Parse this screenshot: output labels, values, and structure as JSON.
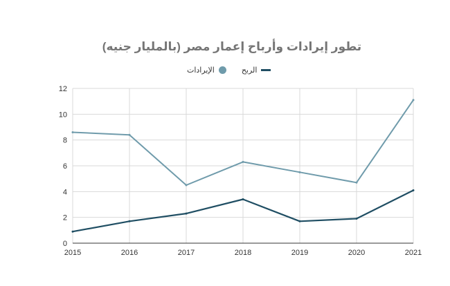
{
  "chart_data": {
    "type": "line",
    "title": "تطور إيرادات وأرباح إعمار مصر (بالمليار جنيه)",
    "xlabel": "",
    "ylabel": "",
    "x": [
      "2015",
      "2016",
      "2017",
      "2018",
      "2019",
      "2020",
      "2021"
    ],
    "ylim": [
      0,
      12
    ],
    "yticks": [
      "0",
      "2",
      "4",
      "6",
      "8",
      "10",
      "12"
    ],
    "grid": true,
    "legend_position": "top",
    "series": [
      {
        "name": "الإيرادات",
        "color": "#6f9bab",
        "values": [
          8.6,
          8.4,
          4.5,
          6.3,
          5.5,
          4.7,
          11.1
        ]
      },
      {
        "name": "الربح",
        "color": "#1f4e63",
        "values": [
          0.9,
          1.7,
          2.3,
          3.4,
          1.7,
          1.9,
          4.1
        ]
      }
    ]
  }
}
